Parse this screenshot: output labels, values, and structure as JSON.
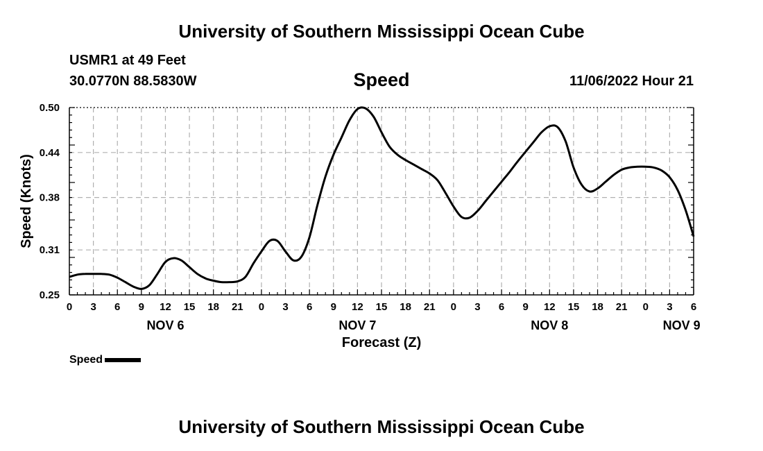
{
  "header": {
    "title": "University of Southern Mississippi Ocean Cube",
    "station": "USMR1 at 49 Feet",
    "coords": "30.0770N  88.5830W",
    "variable": "Speed",
    "timestamp": "11/06/2022 Hour 21"
  },
  "footer": {
    "title": "University of Southern Mississippi Ocean Cube"
  },
  "legend": {
    "label": "Speed"
  },
  "chart_data": {
    "type": "line",
    "xlabel": "Forecast (Z)",
    "ylabel": "Speed (Knots)",
    "x_unit": "hours since NOV 6 00Z",
    "xlim": [
      0,
      78
    ],
    "ylim": [
      0.25,
      0.5
    ],
    "yticks": [
      "0.25",
      "0.31",
      "0.38",
      "0.44",
      "0.50"
    ],
    "ytick_values": [
      0.25,
      0.31,
      0.38,
      0.44,
      0.5
    ],
    "xtick_labels": [
      "0",
      "3",
      "6",
      "9",
      "12",
      "15",
      "18",
      "21",
      "0",
      "3",
      "6",
      "9",
      "12",
      "15",
      "18",
      "21",
      "0",
      "3",
      "6",
      "9",
      "12",
      "15",
      "18",
      "21",
      "0",
      "3",
      "6"
    ],
    "day_labels": [
      {
        "label": "NOV 6",
        "hour": 12
      },
      {
        "label": "NOV 7",
        "hour": 36
      },
      {
        "label": "NOV 8",
        "hour": 60
      },
      {
        "label": "NOV 9",
        "hour": 76.5
      }
    ],
    "grid": true,
    "series": [
      {
        "name": "Speed",
        "color": "#000000",
        "x": [
          0,
          1,
          2,
          3,
          4,
          5,
          6,
          7,
          8,
          9,
          10,
          11,
          12,
          13,
          14,
          15,
          16,
          17,
          18,
          19,
          20,
          21,
          22,
          23,
          24,
          25,
          26,
          27,
          28,
          29,
          30,
          31,
          32,
          33,
          34,
          35,
          36,
          37,
          38,
          39,
          40,
          41,
          42,
          43,
          44,
          45,
          46,
          47,
          48,
          49,
          50,
          51,
          52,
          53,
          54,
          55,
          56,
          57,
          58,
          59,
          60,
          61,
          62,
          63,
          64,
          65,
          66,
          67,
          68,
          69,
          70,
          71,
          72,
          73,
          74,
          75,
          76,
          77,
          78
        ],
        "values": [
          0.274,
          0.277,
          0.278,
          0.278,
          0.278,
          0.277,
          0.273,
          0.267,
          0.261,
          0.258,
          0.263,
          0.278,
          0.294,
          0.299,
          0.296,
          0.287,
          0.278,
          0.272,
          0.269,
          0.267,
          0.267,
          0.268,
          0.274,
          0.292,
          0.308,
          0.322,
          0.322,
          0.308,
          0.296,
          0.301,
          0.327,
          0.37,
          0.408,
          0.437,
          0.46,
          0.483,
          0.498,
          0.499,
          0.488,
          0.467,
          0.448,
          0.437,
          0.43,
          0.424,
          0.418,
          0.412,
          0.403,
          0.386,
          0.368,
          0.354,
          0.353,
          0.362,
          0.375,
          0.388,
          0.401,
          0.414,
          0.428,
          0.441,
          0.454,
          0.467,
          0.475,
          0.474,
          0.455,
          0.42,
          0.397,
          0.388,
          0.392,
          0.401,
          0.41,
          0.417,
          0.42,
          0.421,
          0.421,
          0.42,
          0.416,
          0.407,
          0.39,
          0.363,
          0.328
        ]
      }
    ]
  }
}
